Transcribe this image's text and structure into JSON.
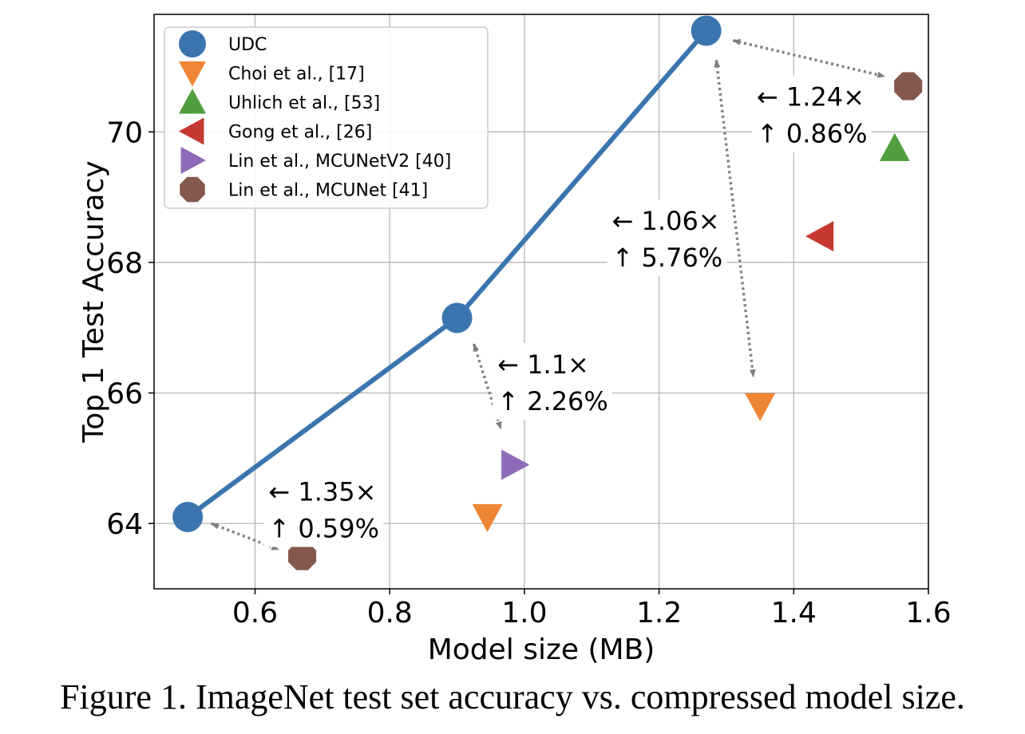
{
  "chart_data": {
    "type": "scatter",
    "xlabel": "Model size (MB)",
    "ylabel": "Top 1 Test Accuracy",
    "xlim": [
      0.45,
      1.6
    ],
    "ylim": [
      63.0,
      71.8
    ],
    "xticks": [
      0.6,
      0.8,
      1.0,
      1.2,
      1.4,
      1.6
    ],
    "xtick_labels": [
      "0.6",
      "0.8",
      "1.0",
      "1.2",
      "1.4",
      "1.6"
    ],
    "yticks": [
      64,
      66,
      68,
      70
    ],
    "ytick_labels": [
      "64",
      "66",
      "68",
      "70"
    ],
    "grid": true,
    "legend_position": "top-left",
    "series": [
      {
        "name": "UDC",
        "marker": "circle",
        "color": "#3b75af",
        "line": true,
        "points": [
          [
            0.5,
            64.1
          ],
          [
            0.9,
            67.15
          ],
          [
            1.27,
            71.55
          ]
        ]
      },
      {
        "name": "Choi et al., [17]",
        "marker": "triangle-down",
        "color": "#ef8636",
        "points": [
          [
            0.945,
            64.1
          ],
          [
            1.35,
            65.8
          ]
        ]
      },
      {
        "name": "Uhlich et al., [53]",
        "marker": "triangle-up",
        "color": "#519e3e",
        "points": [
          [
            1.55,
            69.75
          ]
        ]
      },
      {
        "name": "Gong et al., [26]",
        "marker": "triangle-left",
        "color": "#c53932",
        "points": [
          [
            1.44,
            68.4
          ]
        ]
      },
      {
        "name": "Lin et al., MCUNetV2 [40]",
        "marker": "triangle-right",
        "color": "#8d6bb8",
        "points": [
          [
            0.985,
            64.9
          ]
        ]
      },
      {
        "name": "Lin et al., MCUNet [41]",
        "marker": "octagon",
        "color": "#84584e",
        "points": [
          [
            0.67,
            63.5
          ],
          [
            1.57,
            70.7
          ]
        ]
      }
    ],
    "annotations": [
      {
        "line1": "← 1.35×",
        "line2": "↑ 0.59%",
        "x": 0.62,
        "y": 64.35,
        "arrow": [
          [
            0.535,
            64.0
          ],
          [
            0.635,
            63.6
          ]
        ]
      },
      {
        "line1": "← 1.1×",
        "line2": "↑ 2.26%",
        "x": 0.96,
        "y": 66.3,
        "arrow": [
          [
            0.925,
            66.75
          ],
          [
            0.965,
            65.45
          ]
        ]
      },
      {
        "line1": "← 1.06×",
        "line2": "↑ 5.76%",
        "x": 1.13,
        "y": 68.5,
        "arrow": [
          [
            1.285,
            71.1
          ],
          [
            1.34,
            66.25
          ]
        ]
      },
      {
        "line1": "← 1.24×",
        "line2": "↑ 0.86%",
        "x": 1.345,
        "y": 70.4,
        "arrow": [
          [
            1.31,
            71.4
          ],
          [
            1.535,
            70.85
          ]
        ]
      }
    ]
  },
  "caption": "Figure 1. ImageNet test set accuracy vs. compressed model size."
}
